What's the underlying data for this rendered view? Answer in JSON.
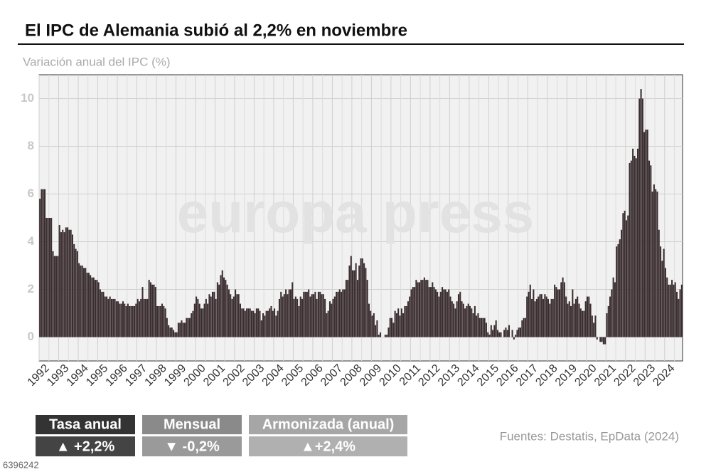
{
  "chart_data": {
    "type": "bar",
    "title": "El IPC de Alemania subió al 2,2% en noviembre",
    "subtitle": "Variación anual del IPC (%)",
    "watermark": "europa press",
    "source": "Fuentes: Destatis, EpData (2024)",
    "image_id": "6396242",
    "color": "#3b2e30",
    "ylim": [
      -1,
      11
    ],
    "yticks": [
      0,
      2,
      4,
      6,
      8,
      10
    ],
    "grid": true,
    "categories": [
      "1992",
      null,
      null,
      null,
      null,
      null,
      null,
      null,
      null,
      null,
      null,
      null,
      "1993",
      null,
      null,
      null,
      null,
      null,
      null,
      null,
      null,
      null,
      null,
      null,
      "1994",
      null,
      null,
      null,
      null,
      null,
      null,
      null,
      null,
      null,
      null,
      null,
      "1995",
      null,
      null,
      null,
      null,
      null,
      null,
      null,
      null,
      null,
      null,
      null,
      "1996",
      null,
      null,
      null,
      null,
      null,
      null,
      null,
      null,
      null,
      null,
      null,
      "1997",
      null,
      null,
      null,
      null,
      null,
      null,
      null,
      null,
      null,
      null,
      null,
      "1998",
      null,
      null,
      null,
      null,
      null,
      null,
      null,
      null,
      null,
      null,
      null,
      "1999",
      null,
      null,
      null,
      null,
      null,
      null,
      null,
      null,
      null,
      null,
      null,
      "2000",
      null,
      null,
      null,
      null,
      null,
      null,
      null,
      null,
      null,
      null,
      null,
      "2001",
      null,
      null,
      null,
      null,
      null,
      null,
      null,
      null,
      null,
      null,
      null,
      "2002",
      null,
      null,
      null,
      null,
      null,
      null,
      null,
      null,
      null,
      null,
      null,
      "2003",
      null,
      null,
      null,
      null,
      null,
      null,
      null,
      null,
      null,
      null,
      null,
      "2004",
      null,
      null,
      null,
      null,
      null,
      null,
      null,
      null,
      null,
      null,
      null,
      "2005",
      null,
      null,
      null,
      null,
      null,
      null,
      null,
      null,
      null,
      null,
      null,
      "2006",
      null,
      null,
      null,
      null,
      null,
      null,
      null,
      null,
      null,
      null,
      null,
      "2007",
      null,
      null,
      null,
      null,
      null,
      null,
      null,
      null,
      null,
      null,
      null,
      "2008",
      null,
      null,
      null,
      null,
      null,
      null,
      null,
      null,
      null,
      null,
      null,
      "2009",
      null,
      null,
      null,
      null,
      null,
      null,
      null,
      null,
      null,
      null,
      null,
      "2010",
      null,
      null,
      null,
      null,
      null,
      null,
      null,
      null,
      null,
      null,
      null,
      "2011",
      null,
      null,
      null,
      null,
      null,
      null,
      null,
      null,
      null,
      null,
      null,
      "2012",
      null,
      null,
      null,
      null,
      null,
      null,
      null,
      null,
      null,
      null,
      null,
      "2013",
      null,
      null,
      null,
      null,
      null,
      null,
      null,
      null,
      null,
      null,
      null,
      "2014",
      null,
      null,
      null,
      null,
      null,
      null,
      null,
      null,
      null,
      null,
      null,
      "2015",
      null,
      null,
      null,
      null,
      null,
      null,
      null,
      null,
      null,
      null,
      null,
      "2016",
      null,
      null,
      null,
      null,
      null,
      null,
      null,
      null,
      null,
      null,
      null,
      "2017",
      null,
      null,
      null,
      null,
      null,
      null,
      null,
      null,
      null,
      null,
      null,
      "2018",
      null,
      null,
      null,
      null,
      null,
      null,
      null,
      null,
      null,
      null,
      null,
      "2019",
      null,
      null,
      null,
      null,
      null,
      null,
      null,
      null,
      null,
      null,
      null,
      "2020",
      null,
      null,
      null,
      null,
      null,
      null,
      null,
      null,
      null,
      null,
      null,
      "2021",
      null,
      null,
      null,
      null,
      null,
      null,
      null,
      null,
      null,
      null,
      null,
      "2022",
      null,
      null,
      null,
      null,
      null,
      null,
      null,
      null,
      null,
      null,
      null,
      "2023",
      null,
      null,
      null,
      null,
      null,
      null,
      null,
      null,
      null,
      null,
      null,
      "2024",
      null,
      null,
      null,
      null,
      null,
      null,
      null,
      null,
      null,
      null
    ],
    "values": [
      5.8,
      6.2,
      6.2,
      6.2,
      5.0,
      5.0,
      5.0,
      5.0,
      3.6,
      3.4,
      3.4,
      3.4,
      4.7,
      4.4,
      4.5,
      4.4,
      4.6,
      4.6,
      4.5,
      4.5,
      4.3,
      3.9,
      3.7,
      3.6,
      3.1,
      3.0,
      3.0,
      2.9,
      2.9,
      2.7,
      2.7,
      2.6,
      2.5,
      2.5,
      2.4,
      2.4,
      2.3,
      2.0,
      1.9,
      1.9,
      1.7,
      1.7,
      1.6,
      1.7,
      1.6,
      1.6,
      1.6,
      1.5,
      1.5,
      1.4,
      1.4,
      1.5,
      1.4,
      1.3,
      1.4,
      1.3,
      1.3,
      1.3,
      1.3,
      1.4,
      1.6,
      1.5,
      1.6,
      2.1,
      1.6,
      1.6,
      1.6,
      2.4,
      2.3,
      2.2,
      2.2,
      2.1,
      1.3,
      1.3,
      1.3,
      1.4,
      1.3,
      1.2,
      0.8,
      0.5,
      0.4,
      0.4,
      0.3,
      0.2,
      0.2,
      0.6,
      0.6,
      0.7,
      0.6,
      0.6,
      0.8,
      0.8,
      0.8,
      1.0,
      1.1,
      1.4,
      1.7,
      1.6,
      1.4,
      1.2,
      1.2,
      1.4,
      1.6,
      1.4,
      1.8,
      1.7,
      1.9,
      1.9,
      1.6,
      2.3,
      2.2,
      2.6,
      2.8,
      2.5,
      2.4,
      2.2,
      2.0,
      1.8,
      1.6,
      1.7,
      2.0,
      1.8,
      1.8,
      1.4,
      1.2,
      1.2,
      1.1,
      1.2,
      1.2,
      1.2,
      1.1,
      1.1,
      1.0,
      1.2,
      1.2,
      1.1,
      0.7,
      1.0,
      0.9,
      1.1,
      1.1,
      1.2,
      1.3,
      1.1,
      1.2,
      0.9,
      1.1,
      1.6,
      1.9,
      1.7,
      1.8,
      2.0,
      1.8,
      2.0,
      2.0,
      2.3,
      1.6,
      1.7,
      1.6,
      1.3,
      1.7,
      1.6,
      1.9,
      1.9,
      1.9,
      2.0,
      1.7,
      1.8,
      1.8,
      1.9,
      1.6,
      1.9,
      1.9,
      1.8,
      1.8,
      1.6,
      1.0,
      1.1,
      1.5,
      1.4,
      1.6,
      1.7,
      1.9,
      1.9,
      2.0,
      1.9,
      2.0,
      2.0,
      2.4,
      2.4,
      3.0,
      3.4,
      2.8,
      2.8,
      3.1,
      2.4,
      3.0,
      3.3,
      3.3,
      3.1,
      2.9,
      2.4,
      1.4,
      1.1,
      0.9,
      1.0,
      0.5,
      0.7,
      0.1,
      0.2,
      0.0,
      0.0,
      0.1,
      0.1,
      0.4,
      0.8,
      0.8,
      0.6,
      1.1,
      1.0,
      1.2,
      0.9,
      1.2,
      1.0,
      1.3,
      1.3,
      1.5,
      1.7,
      2.0,
      2.1,
      2.1,
      2.4,
      2.3,
      2.3,
      2.4,
      2.4,
      2.5,
      2.4,
      2.4,
      2.1,
      2.1,
      2.3,
      2.1,
      2.0,
      1.9,
      1.7,
      1.9,
      2.1,
      2.0,
      2.0,
      1.9,
      2.0,
      1.7,
      1.5,
      1.4,
      1.2,
      1.5,
      1.8,
      1.9,
      1.5,
      1.4,
      1.2,
      1.3,
      1.4,
      1.3,
      1.2,
      1.0,
      1.3,
      0.9,
      1.0,
      0.8,
      0.8,
      0.8,
      0.8,
      0.6,
      0.2,
      0.1,
      0.5,
      0.3,
      0.5,
      0.7,
      0.3,
      0.2,
      0.2,
      0.0,
      0.3,
      0.4,
      0.3,
      0.5,
      0.0,
      0.3,
      -0.1,
      0.1,
      0.3,
      0.4,
      0.4,
      0.7,
      0.8,
      0.8,
      1.7,
      1.9,
      2.2,
      1.6,
      2.0,
      1.5,
      1.6,
      1.7,
      1.8,
      1.8,
      1.6,
      1.8,
      1.7,
      1.6,
      1.4,
      1.6,
      1.6,
      2.2,
      2.1,
      2.0,
      2.0,
      2.3,
      2.5,
      2.3,
      1.7,
      1.4,
      1.5,
      1.3,
      2.0,
      1.4,
      1.6,
      1.7,
      1.4,
      1.2,
      1.1,
      1.1,
      1.5,
      1.7,
      1.7,
      1.4,
      0.9,
      0.6,
      0.9,
      -0.1,
      0.0,
      -0.2,
      -0.2,
      -0.3,
      -0.3,
      1.0,
      1.3,
      1.7,
      2.0,
      2.5,
      2.3,
      3.8,
      3.9,
      4.1,
      4.5,
      5.2,
      5.3,
      4.9,
      5.1,
      7.3,
      7.4,
      7.9,
      7.6,
      7.5,
      7.9,
      10.0,
      10.4,
      10.0,
      8.6,
      8.7,
      8.7,
      7.4,
      7.2,
      6.1,
      6.4,
      6.2,
      6.1,
      4.5,
      3.8,
      3.2,
      3.7,
      2.9,
      2.5,
      2.2,
      2.2,
      2.4,
      2.2,
      2.3,
      1.9,
      1.6,
      2.0,
      2.2
    ]
  },
  "indicators": [
    {
      "label": "Tasa anual",
      "value": "▲ +2,2%"
    },
    {
      "label": "Mensual",
      "value": "▼ -0,2%"
    },
    {
      "label": "Armonizada (anual)",
      "value": "▲+2,4%"
    }
  ]
}
